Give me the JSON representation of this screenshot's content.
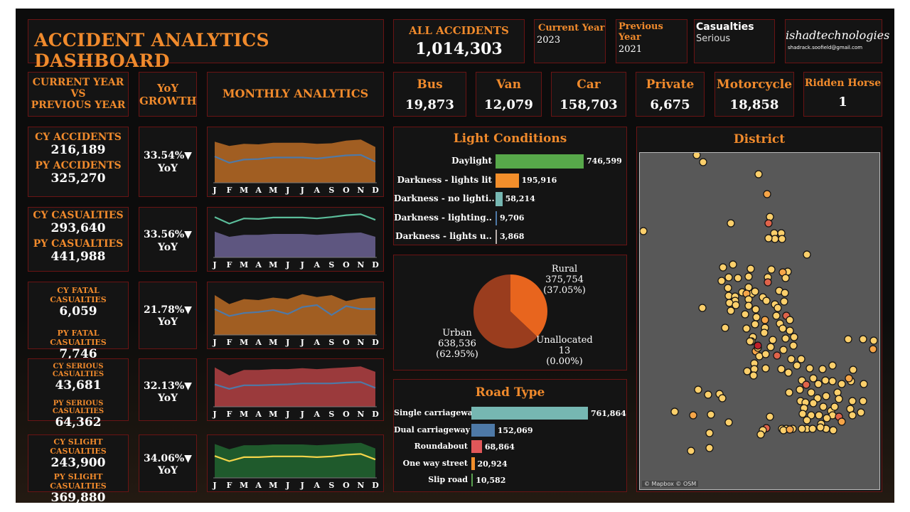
{
  "header": {
    "title": "ACCIDENT ANALYTICS DASHBOARD",
    "all_accidents_label": "ALL ACCIDENTS",
    "all_accidents_value": "1,014,303",
    "current_year_label": "Current Year",
    "current_year_value": "2023",
    "previous_year_label": "Previous Year",
    "previous_year_value": "2021",
    "casualties_label": "Casualties",
    "casualties_value": "Serious",
    "brand_name": "ishadtechnologies",
    "brand_email": "shadrack.soofield@gmail.com"
  },
  "column_headers": {
    "cy_vs_py": [
      "CURRENT YEAR",
      "VS",
      "PREVIOUS YEAR"
    ],
    "yoy": [
      "YoY",
      "GROWTH"
    ],
    "monthly": "MONTHLY ANALYTICS"
  },
  "vehicles": [
    {
      "label": "Bus",
      "value": "19,873"
    },
    {
      "label": "Van",
      "value": "12,079"
    },
    {
      "label": "Car",
      "value": "158,703"
    },
    {
      "label": "Private",
      "value": "6,675"
    },
    {
      "label": "Motorcycle",
      "value": "18,858"
    },
    {
      "label": "Ridden Horse",
      "value": "1"
    }
  ],
  "metrics": [
    {
      "cy_label": "CY ACCIDENTS",
      "cy_value": "216,189",
      "py_label": "PY ACCIDENTS",
      "py_value": "325,270",
      "yoy_value": "33.54%▼",
      "yoy_label": "YoY"
    },
    {
      "cy_label": "CY CASUALTIES",
      "cy_value": "293,640",
      "py_label": "PY CASUALTIES",
      "py_value": "441,988",
      "yoy_value": "33.56%▼",
      "yoy_label": "YoY"
    },
    {
      "cy_label": "CY FATAL CASUALTIES",
      "cy_value": "6,059",
      "py_label": "PY FATAL CASUALTIES",
      "py_value": "7,746",
      "yoy_value": "21.78%▼",
      "yoy_label": "YoY"
    },
    {
      "cy_label": "CY SERIOUS CASUALTIES",
      "cy_value": "43,681",
      "py_label": "PY SERIOUS CASUALTIES",
      "py_value": "64,362",
      "yoy_value": "32.13%▼",
      "yoy_label": "YoY"
    },
    {
      "cy_label": "CY SLIGHT CASUALTIES",
      "cy_value": "243,900",
      "py_label": "PY SLIGHT CASUALTIES",
      "py_value": "369,880",
      "yoy_value": "34.06%▼",
      "yoy_label": "YoY"
    }
  ],
  "months": [
    "J",
    "F",
    "M",
    "A",
    "M",
    "J",
    "J",
    "A",
    "S",
    "O",
    "N",
    "D"
  ],
  "light_conditions": {
    "title": "Light Conditions",
    "items": [
      {
        "label": "Daylight",
        "value": 746599,
        "display": "746,599",
        "color": "#57a84a"
      },
      {
        "label": "Darkness - lights lit",
        "value": 195916,
        "display": "195,916",
        "color": "#f28e2b"
      },
      {
        "label": "Darkness - no lighti..",
        "value": 58214,
        "display": "58,214",
        "color": "#76b7b2"
      },
      {
        "label": "Darkness - lighting..",
        "value": 9706,
        "display": "9,706",
        "color": "#4e79a7"
      },
      {
        "label": "Darkness - lights u..",
        "value": 3868,
        "display": "3,868",
        "color": "#bab0ac"
      }
    ]
  },
  "area": {
    "urban_label": "Urban",
    "urban_value": "638,536",
    "urban_pct": "(62.95%)",
    "urban_share": 62.95,
    "rural_label": "Rural",
    "rural_value": "375,754",
    "rural_pct": "(37.05%)",
    "rural_share": 37.05,
    "unalloc_label": "Unallocated",
    "unalloc_value": "13",
    "unalloc_pct": "(0.00%)",
    "urban_color": "#9a3d1e",
    "rural_color": "#e8651e"
  },
  "road_type": {
    "title": "Road Type",
    "items": [
      {
        "label": "Single carriageway",
        "value": 761864,
        "display": "761,864",
        "color": "#76b7b2"
      },
      {
        "label": "Dual carriageway",
        "value": 152069,
        "display": "152,069",
        "color": "#4e79a7"
      },
      {
        "label": "Roundabout",
        "value": 68864,
        "display": "68,864",
        "color": "#e15759"
      },
      {
        "label": "One way street",
        "value": 20924,
        "display": "20,924",
        "color": "#f28e2b"
      },
      {
        "label": "Slip road",
        "value": 10582,
        "display": "10,582",
        "color": "#59a14f"
      }
    ]
  },
  "district": {
    "title": "District",
    "attribution": "© Mapbox © OSM"
  },
  "colors": {
    "accent": "#f08a2c",
    "border": "#6a1414",
    "card": "#141414",
    "accidents_fill": "#a15e22",
    "casualties_fill": "#5e5680",
    "fatal_fill": "#a15e22",
    "serious_fill": "#9b3a3c",
    "slight_fill": "#1f5a2c",
    "cy_line": "#4e79a7",
    "teal_line": "#5bbd9a",
    "yellow_line": "#f5d54a"
  }
}
